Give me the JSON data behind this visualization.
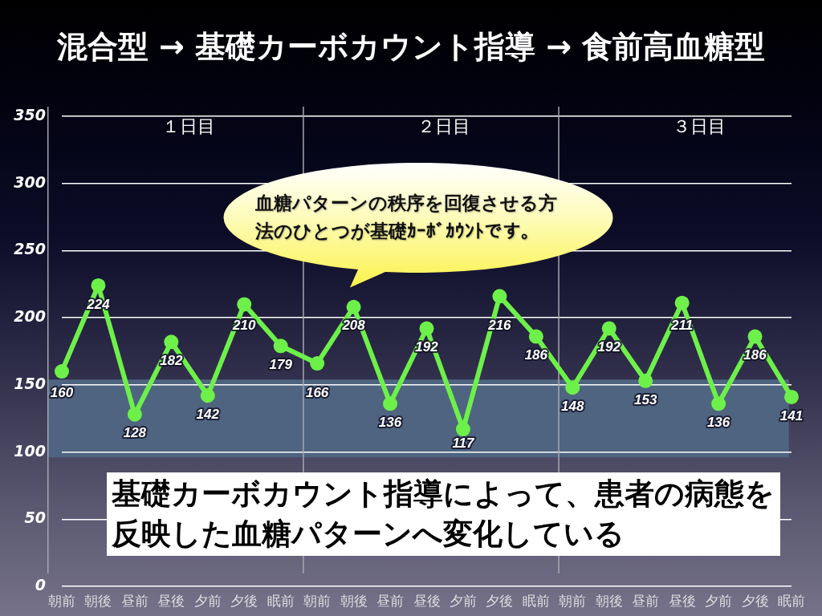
{
  "chart_data": {
    "type": "line",
    "title": "混合型 → 基礎カーボカウント指導 → 食前高血糖型",
    "categories": [
      "朝前",
      "朝後",
      "昼前",
      "昼後",
      "夕前",
      "夕後",
      "眠前",
      "朝前",
      "朝後",
      "昼前",
      "昼後",
      "夕前",
      "夕後",
      "眠前",
      "朝前",
      "朝後",
      "昼前",
      "昼後",
      "夕前",
      "夕後",
      "眠前"
    ],
    "values": [
      160,
      224,
      128,
      182,
      142,
      210,
      179,
      166,
      208,
      136,
      192,
      117,
      216,
      186,
      148,
      192,
      153,
      211,
      136,
      186,
      141
    ],
    "color": "#6ef04a",
    "marker": "circle",
    "data_labels": true,
    "ylim": [
      0,
      350
    ],
    "yticks": [
      0,
      50,
      100,
      150,
      200,
      250,
      300,
      350
    ],
    "grid": "y",
    "bands": [
      {
        "axis": "y",
        "from": 96,
        "to": 154,
        "color": "#4e6480"
      }
    ],
    "annotations": [
      "１日目",
      "２日目",
      "３日目",
      "血糖パターンの秩序を回復させる方法のひとつが基礎ｶｰﾎﾞｶｳﾝﾄです。",
      "基礎カーボカウント指導によって、患者の病態を反映した血糖パターンへ変化している"
    ]
  }
}
